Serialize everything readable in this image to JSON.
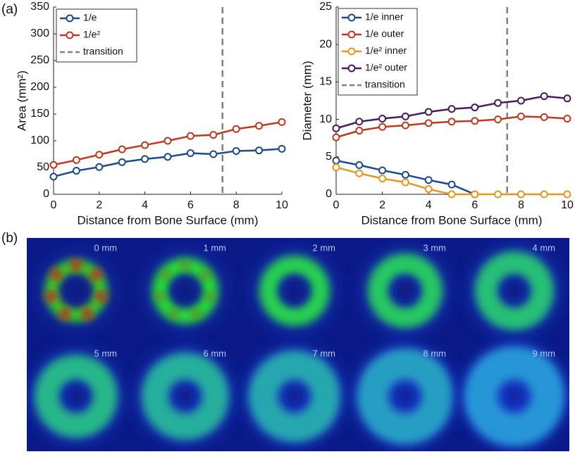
{
  "panels": {
    "a": "(a)",
    "b": "(b)"
  },
  "chart_data": [
    {
      "type": "line",
      "ylabel": "Area (mm²)",
      "xlabel": "Distance from Bone Surface (mm)",
      "x": [
        0,
        1,
        2,
        3,
        4,
        5,
        6,
        7,
        8,
        9,
        10
      ],
      "xlim": [
        0,
        10
      ],
      "xticks": [
        0,
        2,
        4,
        6,
        8,
        10
      ],
      "ylim": [
        0,
        350
      ],
      "yticks": [
        0,
        50,
        100,
        150,
        200,
        250,
        300,
        350
      ],
      "legend": "upper left",
      "series": [
        {
          "name": "1/e",
          "color": "#1c4a8c",
          "values": [
            33,
            44,
            51,
            60,
            66,
            70,
            77,
            75,
            81,
            82,
            85
          ]
        },
        {
          "name": "1/e²",
          "color": "#c0391f",
          "values": [
            55,
            64,
            74,
            84,
            92,
            100,
            109,
            111,
            122,
            128,
            135
          ]
        }
      ],
      "transition": {
        "name": "transition",
        "x": 7.4,
        "color": "#808080"
      }
    },
    {
      "type": "line",
      "ylabel": "Diameter (mm)",
      "xlabel": "Distance from Bone Surface (mm)",
      "x": [
        0,
        1,
        2,
        3,
        4,
        5,
        6,
        7,
        8,
        9,
        10
      ],
      "xlim": [
        0,
        10
      ],
      "xticks": [
        0,
        2,
        4,
        6,
        8,
        10
      ],
      "ylim": [
        0,
        25
      ],
      "yticks": [
        0,
        5,
        10,
        15,
        20,
        25
      ],
      "legend": "upper left",
      "series": [
        {
          "name": "1/e inner",
          "color": "#1c4a8c",
          "values": [
            4.5,
            3.9,
            3.2,
            2.6,
            1.9,
            1.3,
            0,
            null,
            null,
            null,
            null
          ]
        },
        {
          "name": "1/e outer",
          "color": "#c0391f",
          "values": [
            7.6,
            8.5,
            9.0,
            9.2,
            9.5,
            9.7,
            9.8,
            10.0,
            10.4,
            10.3,
            10.1
          ]
        },
        {
          "name": "1/e² inner",
          "color": "#e8961e",
          "values": [
            3.6,
            2.8,
            2.1,
            1.6,
            0.7,
            0,
            0,
            0,
            0,
            0,
            0
          ]
        },
        {
          "name": "1/e² outer",
          "color": "#4a1a5e",
          "values": [
            8.8,
            9.7,
            10.1,
            10.4,
            11.0,
            11.4,
            11.6,
            12.2,
            12.5,
            13.1,
            12.8
          ]
        }
      ],
      "transition": {
        "name": "transition",
        "x": 7.4,
        "color": "#808080"
      }
    }
  ],
  "images": {
    "labels": [
      "0 mm",
      "1 mm",
      "2 mm",
      "3 mm",
      "4 mm",
      "5 mm",
      "6 mm",
      "7 mm",
      "8 mm",
      "9 mm"
    ]
  }
}
